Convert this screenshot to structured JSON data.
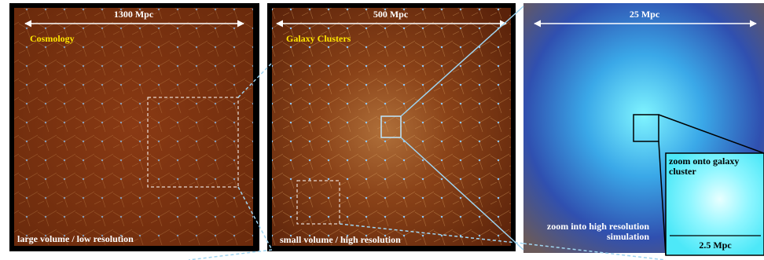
{
  "panels": [
    {
      "scale": "1300 Mpc",
      "title": "Cosmology",
      "caption": "large volume / low resolution"
    },
    {
      "scale": "500 Mpc",
      "title": "Galaxy Clusters",
      "caption": "small volume / high resolution"
    },
    {
      "scale": "25 Mpc",
      "caption_lines": [
        "zoom into high resolution",
        "simulation"
      ]
    }
  ],
  "inset": {
    "caption_lines": [
      "zoom onto galaxy",
      "cluster"
    ],
    "scale": "2.5 Mpc"
  }
}
